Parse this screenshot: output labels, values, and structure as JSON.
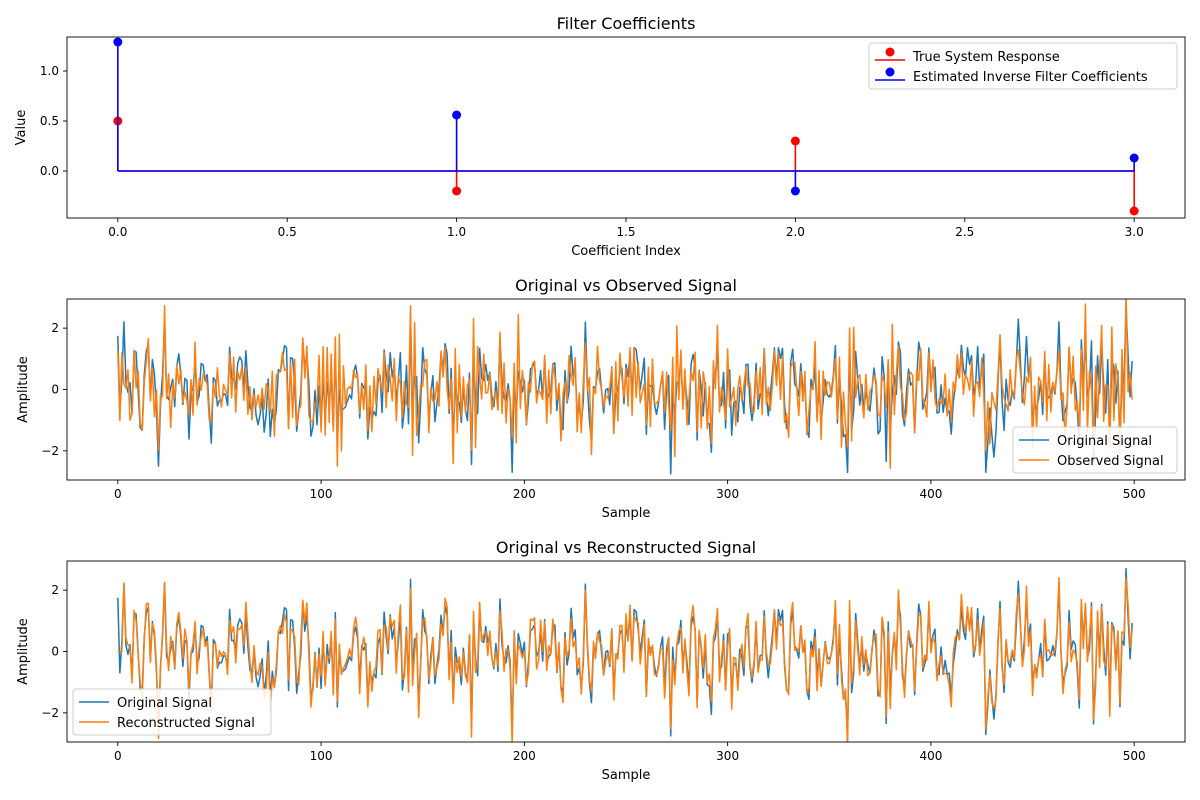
{
  "chart_data": [
    {
      "type": "stem",
      "title": "Filter Coefficients",
      "xlabel": "Coefficient Index",
      "ylabel": "Value",
      "xlim": [
        -0.15,
        3.15
      ],
      "ylim": [
        -0.47,
        1.34
      ],
      "xticks": [
        0.0,
        0.5,
        1.0,
        1.5,
        2.0,
        2.5,
        3.0
      ],
      "xtick_labels": [
        "0.0",
        "0.5",
        "1.0",
        "1.5",
        "2.0",
        "2.5",
        "3.0"
      ],
      "yticks": [
        0.0,
        0.5,
        1.0
      ],
      "ytick_labels": [
        "0.0",
        "0.5",
        "1.0"
      ],
      "legend_position": "top-right",
      "series": [
        {
          "name": "True System Response",
          "color": "#ff0000",
          "x": [
            0,
            1,
            2,
            3
          ],
          "values": [
            0.5,
            -0.2,
            0.3,
            -0.4
          ]
        },
        {
          "name": "Estimated Inverse Filter Coefficients",
          "color": "#0000ff",
          "x": [
            0,
            1,
            2,
            3
          ],
          "values": [
            1.29,
            0.56,
            -0.2,
            0.13
          ]
        }
      ]
    },
    {
      "type": "line",
      "title": "Original vs Observed Signal",
      "xlabel": "Sample",
      "ylabel": "Amplitude",
      "xlim": [
        -25,
        525
      ],
      "ylim": [
        -2.95,
        2.95
      ],
      "xticks": [
        0,
        100,
        200,
        300,
        400,
        500
      ],
      "xtick_labels": [
        "0",
        "100",
        "200",
        "300",
        "400",
        "500"
      ],
      "yticks": [
        -2,
        0,
        2
      ],
      "ytick_labels": [
        "−2",
        "0",
        "2"
      ],
      "legend_position": "lower-right",
      "series": [
        {
          "name": "Original Signal",
          "color": "#1f77b4",
          "n": 500
        },
        {
          "name": "Observed Signal",
          "color": "#ff7f0e",
          "n": 500
        }
      ]
    },
    {
      "type": "line",
      "title": "Original vs Reconstructed Signal",
      "xlabel": "Sample",
      "ylabel": "Amplitude",
      "xlim": [
        -25,
        525
      ],
      "ylim": [
        -2.95,
        2.95
      ],
      "xticks": [
        0,
        100,
        200,
        300,
        400,
        500
      ],
      "xtick_labels": [
        "0",
        "100",
        "200",
        "300",
        "400",
        "500"
      ],
      "yticks": [
        -2,
        0,
        2
      ],
      "ytick_labels": [
        "−2",
        "0",
        "2"
      ],
      "legend_position": "lower-left",
      "series": [
        {
          "name": "Original Signal",
          "color": "#1f77b4",
          "n": 500
        },
        {
          "name": "Reconstructed Signal",
          "color": "#ff7f0e",
          "n": 500
        }
      ]
    }
  ]
}
